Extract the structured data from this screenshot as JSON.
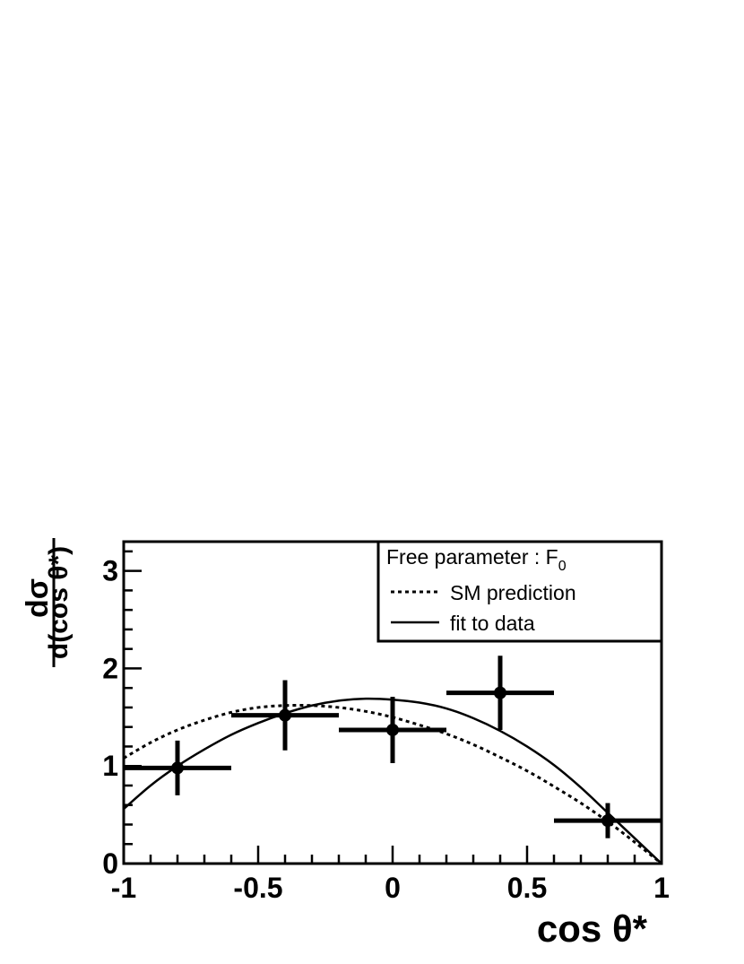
{
  "chart_data": {
    "type": "scatter",
    "xlabel": "cos θ*",
    "ylabel_numerator": "dσ",
    "ylabel_denominator": "d(cos θ*)",
    "xlim": [
      -1,
      1
    ],
    "ylim": [
      0,
      3.3
    ],
    "x_tick_labels": [
      "-1",
      "-0.5",
      "0",
      "0.5",
      "1"
    ],
    "y_tick_labels": [
      "0",
      "1",
      "2",
      "3"
    ],
    "x_ticks": [
      -1,
      -0.5,
      0,
      0.5,
      1
    ],
    "y_ticks": [
      0,
      1,
      2,
      3
    ],
    "x_minor_step": 0.1,
    "y_minor_step": 0.2,
    "legend_position": "top-right",
    "legend": {
      "header_text": "Free parameter : F",
      "header_sub": "0",
      "entries": [
        {
          "label": "SM prediction",
          "style": "dotted"
        },
        {
          "label": "fit to data",
          "style": "solid"
        }
      ]
    },
    "series": [
      {
        "name": "data",
        "points": [
          {
            "x": -0.8,
            "y": 0.98,
            "xerr": 0.2,
            "yerr_low": 0.28,
            "yerr_high": 0.28
          },
          {
            "x": -0.4,
            "y": 1.52,
            "xerr": 0.2,
            "yerr_low": 0.36,
            "yerr_high": 0.36
          },
          {
            "x": 0.0,
            "y": 1.37,
            "xerr": 0.2,
            "yerr_low": 0.34,
            "yerr_high": 0.34
          },
          {
            "x": 0.4,
            "y": 1.75,
            "xerr": 0.2,
            "yerr_low": 0.38,
            "yerr_high": 0.38
          },
          {
            "x": 0.8,
            "y": 0.44,
            "xerr": 0.2,
            "yerr_low": 0.18,
            "yerr_high": 0.18
          }
        ]
      },
      {
        "name": "SM prediction",
        "style": "dotted",
        "x": [
          -1.0,
          -0.9,
          -0.8,
          -0.7,
          -0.6,
          -0.5,
          -0.4,
          -0.3,
          -0.2,
          -0.1,
          0.0,
          0.1,
          0.2,
          0.3,
          0.4,
          0.5,
          0.6,
          0.7,
          0.8,
          0.9,
          1.0
        ],
        "y": [
          1.08,
          1.24,
          1.37,
          1.47,
          1.55,
          1.6,
          1.62,
          1.62,
          1.6,
          1.56,
          1.5,
          1.42,
          1.33,
          1.22,
          1.09,
          0.95,
          0.79,
          0.62,
          0.43,
          0.22,
          0.0
        ]
      },
      {
        "name": "fit to data",
        "style": "solid",
        "x": [
          -1.0,
          -0.9,
          -0.8,
          -0.7,
          -0.6,
          -0.5,
          -0.4,
          -0.3,
          -0.2,
          -0.1,
          0.0,
          0.1,
          0.2,
          0.3,
          0.4,
          0.5,
          0.6,
          0.7,
          0.8,
          0.9,
          1.0
        ],
        "y": [
          0.56,
          0.8,
          1.0,
          1.17,
          1.32,
          1.44,
          1.54,
          1.62,
          1.67,
          1.69,
          1.68,
          1.65,
          1.59,
          1.49,
          1.36,
          1.2,
          1.01,
          0.78,
          0.52,
          0.26,
          0.0
        ]
      }
    ]
  }
}
